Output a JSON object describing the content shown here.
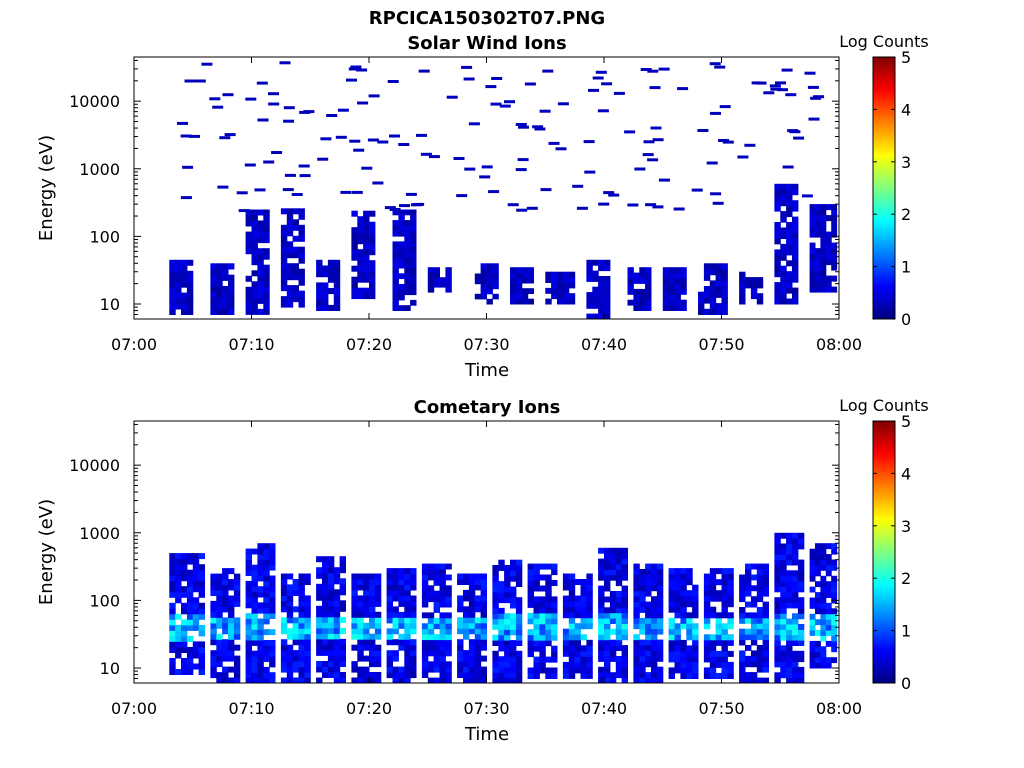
{
  "figure_title": "RPCICA150302T07.PNG",
  "colorbar": {
    "label": "Log Counts",
    "ticks": [
      "0",
      "1",
      "2",
      "3",
      "4",
      "5"
    ],
    "range": [
      0,
      5
    ],
    "colormap": "jet"
  },
  "chart_data": [
    {
      "type": "heatmap",
      "title": "Solar Wind Ions",
      "xlabel": "Time",
      "ylabel": "Energy (eV)",
      "x_ticks": [
        "07:00",
        "07:10",
        "07:20",
        "07:30",
        "07:40",
        "07:50",
        "08:00"
      ],
      "xlim_minutes": [
        0,
        60
      ],
      "y_ticks": [
        "10",
        "100",
        "1000",
        "10000"
      ],
      "y_scale": "log",
      "ylim": [
        6,
        45000
      ],
      "value_range": [
        0,
        5
      ],
      "typical_value": 0.4,
      "bands": [
        {
          "start_min": 3,
          "end_min": 5,
          "low_ev": 7,
          "high_ev": 45
        },
        {
          "start_min": 6.5,
          "end_min": 8.5,
          "low_ev": 7,
          "high_ev": 40
        },
        {
          "start_min": 9.5,
          "end_min": 11.5,
          "low_ev": 7,
          "high_ev": 250
        },
        {
          "start_min": 12.5,
          "end_min": 14.5,
          "low_ev": 9,
          "high_ev": 260
        },
        {
          "start_min": 15.5,
          "end_min": 17.5,
          "low_ev": 8,
          "high_ev": 45
        },
        {
          "start_min": 18.5,
          "end_min": 20.5,
          "low_ev": 12,
          "high_ev": 240
        },
        {
          "start_min": 22,
          "end_min": 24,
          "low_ev": 8,
          "high_ev": 250
        },
        {
          "start_min": 25,
          "end_min": 27,
          "low_ev": 15,
          "high_ev": 35
        },
        {
          "start_min": 29,
          "end_min": 31,
          "low_ev": 10,
          "high_ev": 40
        },
        {
          "start_min": 32,
          "end_min": 34,
          "low_ev": 10,
          "high_ev": 35
        },
        {
          "start_min": 35,
          "end_min": 37.5,
          "low_ev": 10,
          "high_ev": 30
        },
        {
          "start_min": 38.5,
          "end_min": 40.5,
          "low_ev": 6,
          "high_ev": 45
        },
        {
          "start_min": 42,
          "end_min": 44,
          "low_ev": 8,
          "high_ev": 35
        },
        {
          "start_min": 45,
          "end_min": 47,
          "low_ev": 8,
          "high_ev": 35
        },
        {
          "start_min": 48,
          "end_min": 50.5,
          "low_ev": 7,
          "high_ev": 40
        },
        {
          "start_min": 51.5,
          "end_min": 53.5,
          "low_ev": 10,
          "high_ev": 30
        },
        {
          "start_min": 54.5,
          "end_min": 56.5,
          "low_ev": 10,
          "high_ev": 600
        },
        {
          "start_min": 57.5,
          "end_min": 59.8,
          "low_ev": 15,
          "high_ev": 300
        }
      ]
    },
    {
      "type": "heatmap",
      "title": "Cometary Ions",
      "xlabel": "Time",
      "ylabel": "Energy (eV)",
      "x_ticks": [
        "07:00",
        "07:10",
        "07:20",
        "07:30",
        "07:40",
        "07:50",
        "08:00"
      ],
      "xlim_minutes": [
        0,
        60
      ],
      "y_ticks": [
        "10",
        "100",
        "1000",
        "10000"
      ],
      "y_scale": "log",
      "ylim": [
        6,
        45000
      ],
      "value_range": [
        0,
        5
      ],
      "typical_value": 0.6,
      "bands": [
        {
          "start_min": 3,
          "end_min": 6,
          "low_ev": 8,
          "high_ev": 500
        },
        {
          "start_min": 6.5,
          "end_min": 9,
          "low_ev": 6,
          "high_ev": 300
        },
        {
          "start_min": 9.5,
          "end_min": 12,
          "low_ev": 6,
          "high_ev": 700
        },
        {
          "start_min": 12.5,
          "end_min": 15,
          "low_ev": 6,
          "high_ev": 250
        },
        {
          "start_min": 15.5,
          "end_min": 18,
          "low_ev": 6,
          "high_ev": 450
        },
        {
          "start_min": 18.5,
          "end_min": 21,
          "low_ev": 6,
          "high_ev": 250
        },
        {
          "start_min": 21.5,
          "end_min": 24,
          "low_ev": 6,
          "high_ev": 300
        },
        {
          "start_min": 24.5,
          "end_min": 27,
          "low_ev": 6,
          "high_ev": 350
        },
        {
          "start_min": 27.5,
          "end_min": 30,
          "low_ev": 6,
          "high_ev": 250
        },
        {
          "start_min": 30.5,
          "end_min": 33,
          "low_ev": 6,
          "high_ev": 400
        },
        {
          "start_min": 33.5,
          "end_min": 36,
          "low_ev": 7,
          "high_ev": 350
        },
        {
          "start_min": 36.5,
          "end_min": 39,
          "low_ev": 7,
          "high_ev": 250
        },
        {
          "start_min": 39.5,
          "end_min": 42,
          "low_ev": 6,
          "high_ev": 600
        },
        {
          "start_min": 42.5,
          "end_min": 45,
          "low_ev": 6,
          "high_ev": 350
        },
        {
          "start_min": 45.5,
          "end_min": 48,
          "low_ev": 7,
          "high_ev": 300
        },
        {
          "start_min": 48.5,
          "end_min": 51,
          "low_ev": 7,
          "high_ev": 300
        },
        {
          "start_min": 51.5,
          "end_min": 54,
          "low_ev": 6,
          "high_ev": 350
        },
        {
          "start_min": 54.5,
          "end_min": 57,
          "low_ev": 6,
          "high_ev": 1000
        },
        {
          "start_min": 57.5,
          "end_min": 59.8,
          "low_ev": 10,
          "high_ev": 700
        }
      ],
      "peak_band_ev": [
        25,
        60
      ],
      "peak_value": 1.8
    }
  ]
}
